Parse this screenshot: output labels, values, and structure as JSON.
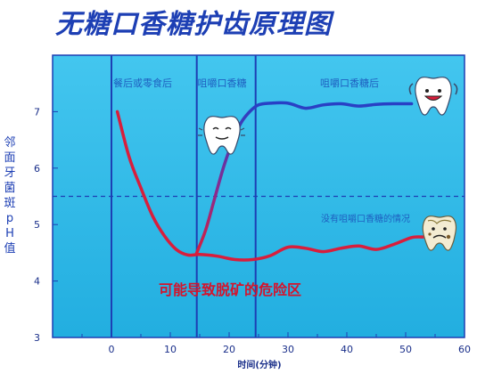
{
  "title": "无糖口香糖护齿原理图",
  "colors": {
    "panel": "#2db7e6",
    "frame": "#1d3fb4",
    "threshold": "#1d3fb4",
    "normal_curve": "#d81e3c",
    "gum_curve": "#2341c8",
    "title": "#1d3fb4"
  },
  "chart_data": {
    "type": "line",
    "title": "无糖口香糖护齿原理图",
    "xlabel": "时间(分钟)",
    "ylabel": "邻面牙菌斑pH值",
    "xlim": [
      -10,
      60
    ],
    "ylim": [
      3,
      8
    ],
    "xticks": [
      "0",
      "10",
      "20",
      "30",
      "40",
      "50",
      "60"
    ],
    "yticks": [
      "3",
      "4",
      "5",
      "6",
      "7"
    ],
    "threshold": 5.5,
    "phase_dividers": [
      0,
      14.5,
      24.5
    ],
    "phases": [
      "餐后或零食后",
      "咀嚼口香糖",
      "咀嚼口香糖后"
    ],
    "danger_label": "可能导致脱矿的危险区",
    "series": [
      {
        "name": "没有咀嚼口香糖的情况",
        "x": [
          1,
          3,
          5,
          7,
          9,
          11,
          13,
          15,
          18,
          21,
          24,
          27,
          30,
          33,
          36,
          39,
          42,
          45,
          48,
          51,
          53
        ],
        "y": [
          7.0,
          6.2,
          5.65,
          5.15,
          4.8,
          4.56,
          4.46,
          4.47,
          4.44,
          4.38,
          4.38,
          4.45,
          4.6,
          4.58,
          4.52,
          4.58,
          4.62,
          4.56,
          4.65,
          4.77,
          4.78
        ]
      },
      {
        "name": "咀嚼口香糖",
        "x": [
          14.5,
          16,
          17.5,
          19,
          20.5,
          22,
          23.5,
          25,
          27,
          30,
          33,
          36,
          39,
          42,
          45,
          48,
          51
        ],
        "y": [
          4.5,
          4.9,
          5.45,
          6.0,
          6.45,
          6.8,
          7.0,
          7.12,
          7.15,
          7.15,
          7.06,
          7.12,
          7.14,
          7.1,
          7.13,
          7.14,
          7.14
        ]
      }
    ]
  },
  "mascots": [
    {
      "name": "happy-tooth",
      "icon": "tooth-happy-icon"
    },
    {
      "name": "chewing-tooth",
      "icon": "tooth-chewing-icon"
    },
    {
      "name": "decayed-tooth",
      "icon": "tooth-decayed-icon"
    }
  ]
}
